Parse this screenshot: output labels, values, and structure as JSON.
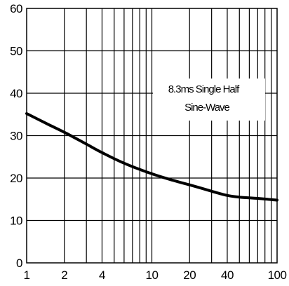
{
  "chart_data": {
    "type": "line",
    "title": "",
    "xlabel": "",
    "ylabel": "",
    "x_scale": "log",
    "xlim": [
      1,
      100
    ],
    "ylim": [
      0,
      60
    ],
    "grid": true,
    "x_ticks": [
      "1",
      "2",
      "4",
      "10",
      "20",
      "40",
      "100"
    ],
    "y_ticks": [
      "0",
      "10",
      "20",
      "30",
      "40",
      "50",
      "60"
    ],
    "annotation": [
      "8.3ms Single Half",
      "Sine-Wave"
    ],
    "series": [
      {
        "x": [
          1,
          1.5,
          2,
          3,
          4,
          6,
          10,
          15,
          20,
          30,
          40,
          50,
          70,
          100
        ],
        "y": [
          35.2,
          32.6,
          30.8,
          28.0,
          26.0,
          23.5,
          21.0,
          19.4,
          18.4,
          16.9,
          15.9,
          15.5,
          15.2,
          14.8
        ]
      }
    ],
    "colors": {
      "line": "#000000",
      "grid": "#000000",
      "background": "#ffffff"
    }
  }
}
